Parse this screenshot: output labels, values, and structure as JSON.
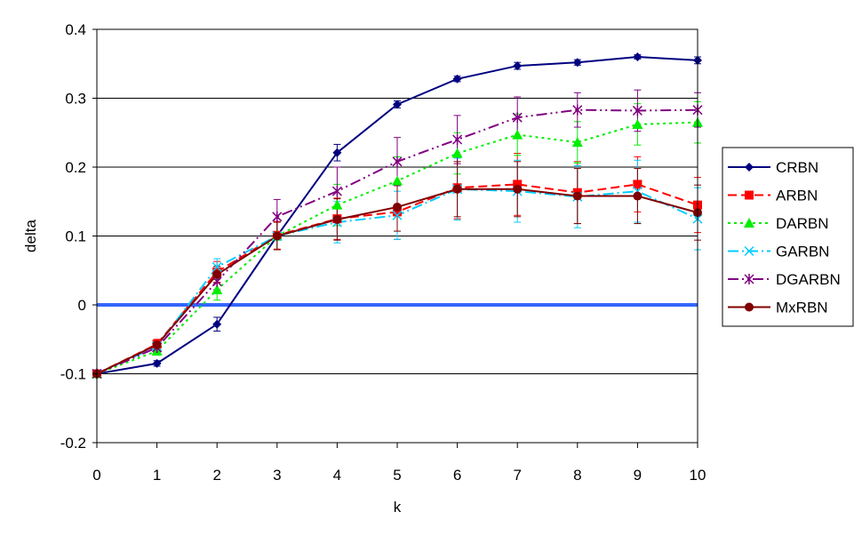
{
  "chart_data": {
    "type": "line",
    "title": "",
    "xlabel": "k",
    "ylabel": "delta",
    "x": [
      0,
      1,
      2,
      3,
      4,
      5,
      6,
      7,
      8,
      9,
      10
    ],
    "xticks": [
      "0",
      "1",
      "2",
      "3",
      "4",
      "5",
      "6",
      "7",
      "8",
      "9",
      "10"
    ],
    "ylim": [
      -0.2,
      0.4
    ],
    "yticks": [
      -0.2,
      -0.1,
      0,
      0.1,
      0.2,
      0.3,
      0.4
    ],
    "ytick_labels": [
      "-0.2",
      "-0.1",
      "0",
      "0.1",
      "0.2",
      "0.3",
      "0.4"
    ],
    "grid": "horizontal",
    "legend_position": "right",
    "reference_line": {
      "y": 0,
      "color": "#3366ff"
    },
    "series": [
      {
        "name": "CRBN",
        "color": "#000080",
        "dash": "solid",
        "marker": "diamond",
        "values": [
          -0.1,
          -0.085,
          -0.028,
          0.1,
          0.221,
          0.291,
          0.328,
          0.347,
          0.352,
          0.36,
          0.355
        ],
        "errors": [
          0.003,
          0.004,
          0.01,
          0.006,
          0.012,
          0.005,
          0.004,
          0.005,
          0.004,
          0.003,
          0.005
        ]
      },
      {
        "name": "ARBN",
        "color": "#ff0000",
        "dash": "long-dash",
        "marker": "square",
        "values": [
          -0.1,
          -0.057,
          0.048,
          0.101,
          0.125,
          0.135,
          0.17,
          0.175,
          0.163,
          0.175,
          0.145
        ],
        "errors": [
          0.003,
          0.007,
          0.015,
          0.02,
          0.03,
          0.04,
          0.045,
          0.045,
          0.045,
          0.04,
          0.04
        ]
      },
      {
        "name": "DARBN",
        "color": "#00ee00",
        "dash": "dotted",
        "marker": "triangle",
        "values": [
          -0.1,
          -0.067,
          0.022,
          0.1,
          0.145,
          0.18,
          0.22,
          0.247,
          0.236,
          0.262,
          0.265
        ],
        "errors": [
          0.003,
          0.006,
          0.015,
          0.02,
          0.03,
          0.035,
          0.03,
          0.03,
          0.03,
          0.03,
          0.03
        ]
      },
      {
        "name": "GARBN",
        "color": "#00ccff",
        "dash": "dash-dot",
        "marker": "x",
        "values": [
          -0.1,
          -0.06,
          0.055,
          0.1,
          0.12,
          0.13,
          0.168,
          0.165,
          0.157,
          0.165,
          0.125
        ],
        "errors": [
          0.003,
          0.007,
          0.012,
          0.02,
          0.03,
          0.035,
          0.045,
          0.045,
          0.045,
          0.045,
          0.045
        ]
      },
      {
        "name": "DGARBN",
        "color": "#800080",
        "dash": "dash-dot-dot",
        "marker": "star",
        "values": [
          -0.1,
          -0.062,
          0.034,
          0.128,
          0.165,
          0.208,
          0.24,
          0.272,
          0.283,
          0.282,
          0.283
        ],
        "errors": [
          0.003,
          0.007,
          0.012,
          0.025,
          0.035,
          0.035,
          0.035,
          0.03,
          0.025,
          0.03,
          0.025
        ]
      },
      {
        "name": "MxRBN",
        "color": "#800000",
        "dash": "solid",
        "marker": "circle",
        "values": [
          -0.1,
          -0.058,
          0.044,
          0.1,
          0.124,
          0.142,
          0.168,
          0.168,
          0.158,
          0.158,
          0.134
        ],
        "errors": [
          0.003,
          0.006,
          0.012,
          0.02,
          0.03,
          0.035,
          0.04,
          0.04,
          0.04,
          0.04,
          0.04
        ]
      }
    ]
  }
}
